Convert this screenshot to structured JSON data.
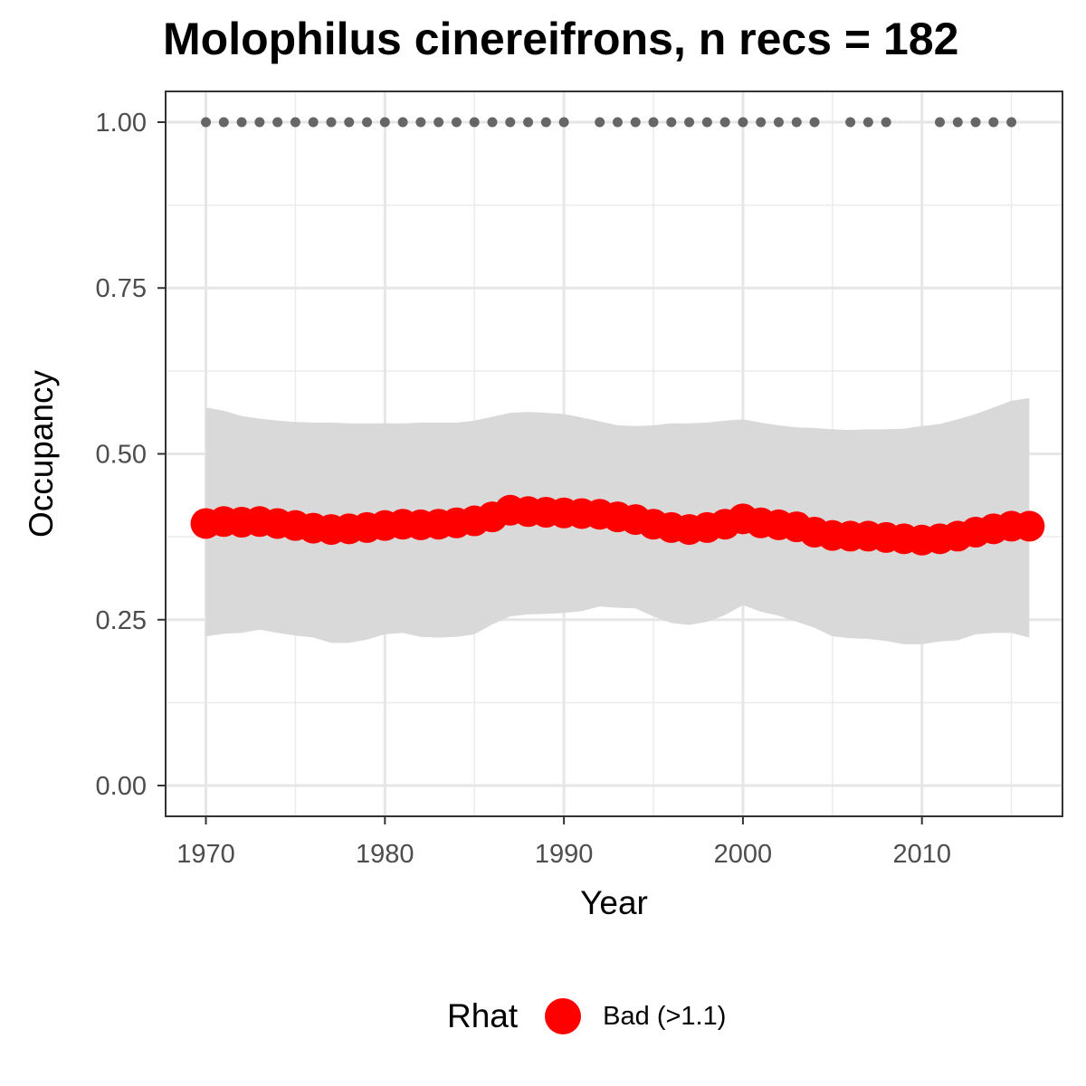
{
  "chart_data": {
    "type": "line",
    "title": "Molophilus cinereifrons, n recs = 182",
    "xlabel": "Year",
    "ylabel": "Occupancy",
    "xlim": [
      1967.8,
      2017.8
    ],
    "ylim": [
      -0.045,
      1.045
    ],
    "x_ticks": [
      1970,
      1980,
      1990,
      2000,
      2010
    ],
    "x_tick_labels": [
      "1970",
      "1980",
      "1990",
      "2000",
      "2010"
    ],
    "y_ticks": [
      0,
      0.25,
      0.5,
      0.75,
      1.0
    ],
    "y_tick_labels": [
      "0.00",
      "0.25",
      "0.50",
      "0.75",
      "1.00"
    ],
    "grid": true,
    "colors": {
      "mean": "#ff0000",
      "ribbon": "#d9d9d9",
      "records": "#666666"
    },
    "series": [
      {
        "type": "line",
        "x": [
          1970,
          1971,
          1972,
          1973,
          1974,
          1975,
          1976,
          1977,
          1978,
          1979,
          1980,
          1981,
          1982,
          1983,
          1984,
          1985,
          1986,
          1987,
          1988,
          1989,
          1990,
          1991,
          1992,
          1993,
          1994,
          1995,
          1996,
          1997,
          1998,
          1999,
          2000,
          2001,
          2002,
          2003,
          2004,
          2005,
          2006,
          2007,
          2008,
          2009,
          2010,
          2011,
          2012,
          2013,
          2014,
          2015,
          2016
        ],
        "y": [
          0.395,
          0.398,
          0.397,
          0.398,
          0.395,
          0.392,
          0.388,
          0.386,
          0.387,
          0.389,
          0.392,
          0.394,
          0.393,
          0.394,
          0.396,
          0.399,
          0.405,
          0.415,
          0.413,
          0.412,
          0.411,
          0.41,
          0.409,
          0.405,
          0.401,
          0.394,
          0.389,
          0.386,
          0.389,
          0.394,
          0.402,
          0.396,
          0.393,
          0.39,
          0.382,
          0.377,
          0.376,
          0.376,
          0.374,
          0.372,
          0.37,
          0.372,
          0.376,
          0.382,
          0.387,
          0.391,
          0.391
        ]
      },
      {
        "type": "ribbon",
        "x": [
          1970,
          1971,
          1972,
          1973,
          1974,
          1975,
          1976,
          1977,
          1978,
          1979,
          1980,
          1981,
          1982,
          1983,
          1984,
          1985,
          1986,
          1987,
          1988,
          1989,
          1990,
          1991,
          1992,
          1993,
          1994,
          1995,
          1996,
          1997,
          1998,
          1999,
          2000,
          2001,
          2002,
          2003,
          2004,
          2005,
          2006,
          2007,
          2008,
          2009,
          2010,
          2011,
          2012,
          2013,
          2014,
          2015,
          2016
        ],
        "lower": [
          0.225,
          0.229,
          0.23,
          0.235,
          0.23,
          0.226,
          0.223,
          0.215,
          0.215,
          0.22,
          0.228,
          0.23,
          0.224,
          0.223,
          0.224,
          0.228,
          0.243,
          0.255,
          0.258,
          0.259,
          0.26,
          0.263,
          0.27,
          0.268,
          0.267,
          0.255,
          0.245,
          0.242,
          0.247,
          0.257,
          0.272,
          0.262,
          0.256,
          0.247,
          0.238,
          0.225,
          0.222,
          0.221,
          0.218,
          0.213,
          0.213,
          0.217,
          0.219,
          0.228,
          0.23,
          0.23,
          0.223
        ],
        "upper": [
          0.57,
          0.565,
          0.557,
          0.553,
          0.55,
          0.548,
          0.547,
          0.547,
          0.546,
          0.546,
          0.546,
          0.546,
          0.547,
          0.547,
          0.547,
          0.55,
          0.556,
          0.562,
          0.563,
          0.562,
          0.56,
          0.555,
          0.549,
          0.543,
          0.542,
          0.543,
          0.546,
          0.546,
          0.547,
          0.55,
          0.552,
          0.547,
          0.543,
          0.54,
          0.539,
          0.537,
          0.536,
          0.537,
          0.537,
          0.538,
          0.542,
          0.545,
          0.552,
          0.56,
          0.57,
          0.58,
          0.584
        ]
      },
      {
        "type": "scatter",
        "x": [
          1970,
          1971,
          1972,
          1973,
          1974,
          1975,
          1976,
          1977,
          1978,
          1979,
          1980,
          1981,
          1982,
          1983,
          1984,
          1985,
          1986,
          1987,
          1988,
          1989,
          1990,
          1992,
          1993,
          1994,
          1995,
          1996,
          1997,
          1998,
          1999,
          2000,
          2001,
          2002,
          2003,
          2004,
          2006,
          2007,
          2008,
          2011,
          2012,
          2013,
          2014,
          2015
        ],
        "y": [
          1,
          1,
          1,
          1,
          1,
          1,
          1,
          1,
          1,
          1,
          1,
          1,
          1,
          1,
          1,
          1,
          1,
          1,
          1,
          1,
          1,
          1,
          1,
          1,
          1,
          1,
          1,
          1,
          1,
          1,
          1,
          1,
          1,
          1,
          1,
          1,
          1,
          1,
          1,
          1,
          1,
          1
        ]
      }
    ],
    "legend": {
      "title": "Rhat",
      "entries": [
        "Bad (>1.1)"
      ],
      "position": "bottom"
    }
  }
}
